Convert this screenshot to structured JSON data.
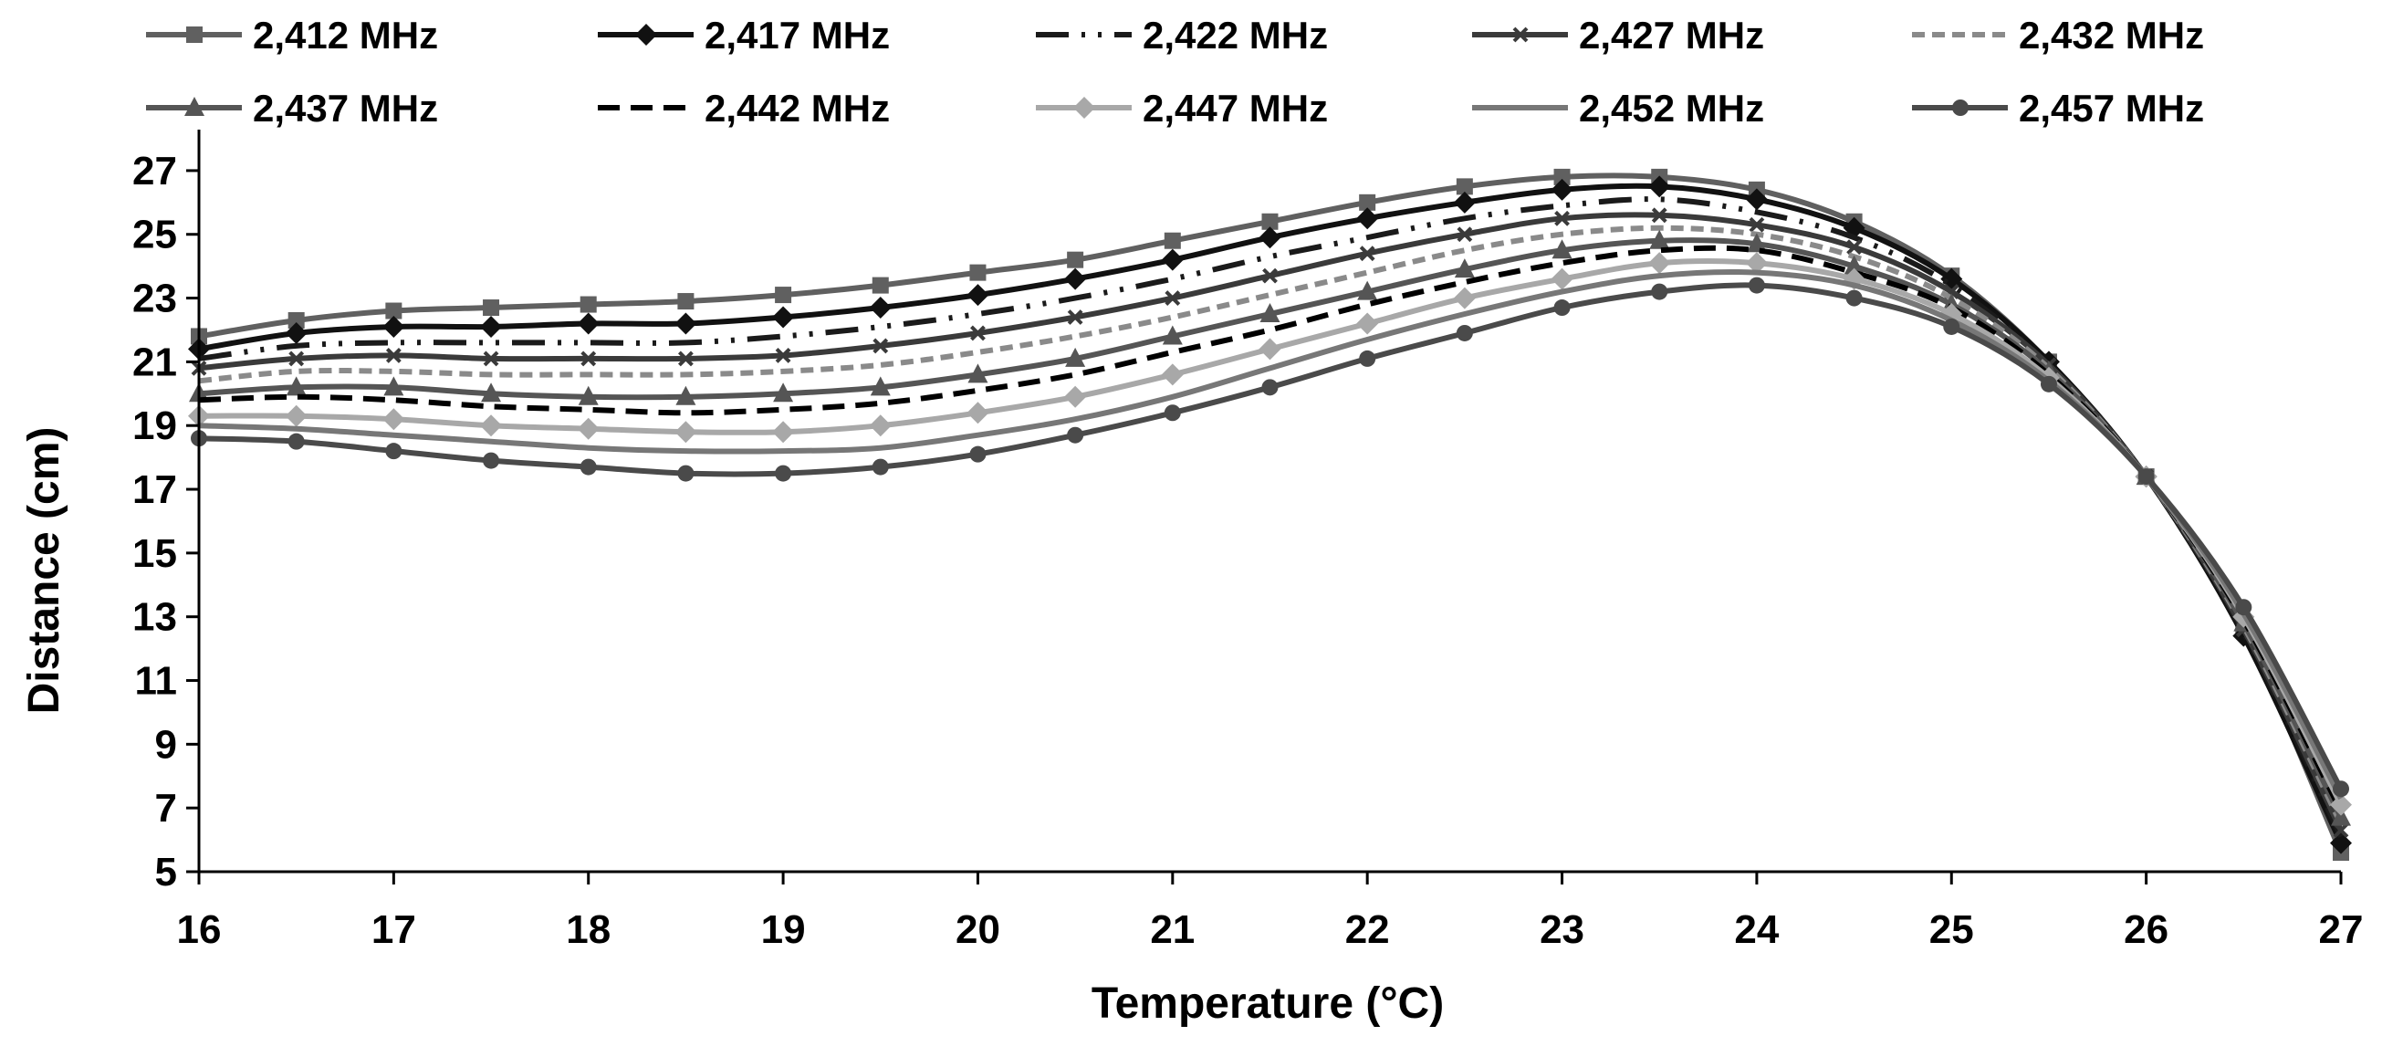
{
  "chart_data": {
    "type": "line",
    "title": "",
    "xlabel": "Temperature (°C)",
    "ylabel": "Distance (cm)",
    "xlim": [
      16,
      27
    ],
    "ylim": [
      5,
      28
    ],
    "xticks": [
      16,
      17,
      18,
      19,
      20,
      21,
      22,
      23,
      24,
      25,
      26,
      27
    ],
    "yticks": [
      5,
      7,
      9,
      11,
      13,
      15,
      17,
      19,
      21,
      23,
      25,
      27
    ],
    "grid": false,
    "legend_position": "top",
    "x": [
      16,
      16.5,
      17,
      17.5,
      18,
      18.5,
      19,
      19.5,
      20,
      20.5,
      21,
      21.5,
      22,
      22.5,
      23,
      23.5,
      24,
      24.5,
      25,
      25.5,
      26,
      26.5,
      27
    ],
    "series": [
      {
        "name": "2,412 MHz",
        "color": "#606060",
        "dash": "",
        "marker": "square",
        "values": [
          21.8,
          22.3,
          22.6,
          22.7,
          22.8,
          22.9,
          23.1,
          23.4,
          23.8,
          24.2,
          24.8,
          25.4,
          26.0,
          26.5,
          26.8,
          26.8,
          26.4,
          25.4,
          23.7,
          21.0,
          17.4,
          12.6,
          5.6
        ]
      },
      {
        "name": "2,417 MHz",
        "color": "#111111",
        "dash": "",
        "marker": "diamond",
        "values": [
          21.4,
          21.9,
          22.1,
          22.1,
          22.2,
          22.2,
          22.4,
          22.7,
          23.1,
          23.6,
          24.2,
          24.9,
          25.5,
          26.0,
          26.4,
          26.5,
          26.1,
          25.2,
          23.6,
          21.0,
          17.4,
          12.4,
          5.9
        ]
      },
      {
        "name": "2,422 MHz",
        "color": "#1a1a1a",
        "dash": "36,14,4,14,4,14",
        "marker": "",
        "values": [
          21.1,
          21.5,
          21.6,
          21.6,
          21.6,
          21.6,
          21.8,
          22.1,
          22.5,
          23.0,
          23.6,
          24.3,
          24.9,
          25.5,
          25.9,
          26.1,
          25.7,
          24.9,
          23.4,
          20.9,
          17.4,
          12.5,
          6.1
        ]
      },
      {
        "name": "2,427 MHz",
        "color": "#3a3a3a",
        "dash": "",
        "marker": "x",
        "values": [
          20.8,
          21.1,
          21.2,
          21.1,
          21.1,
          21.1,
          21.2,
          21.5,
          21.9,
          22.4,
          23.0,
          23.7,
          24.4,
          25.0,
          25.5,
          25.6,
          25.3,
          24.6,
          23.2,
          20.9,
          17.4,
          12.6,
          6.3
        ]
      },
      {
        "name": "2,432 MHz",
        "color": "#8a8a8a",
        "dash": "14,8",
        "marker": "",
        "values": [
          20.4,
          20.7,
          20.7,
          20.6,
          20.6,
          20.6,
          20.7,
          20.9,
          21.3,
          21.8,
          22.4,
          23.1,
          23.8,
          24.5,
          25.0,
          25.2,
          25.0,
          24.3,
          23.0,
          20.8,
          17.4,
          12.7,
          6.5
        ]
      },
      {
        "name": "2,437 MHz",
        "color": "#555555",
        "dash": "",
        "marker": "triangle",
        "values": [
          20.0,
          20.2,
          20.2,
          20.0,
          19.9,
          19.9,
          20.0,
          20.2,
          20.6,
          21.1,
          21.8,
          22.5,
          23.2,
          23.9,
          24.5,
          24.8,
          24.7,
          24.0,
          22.8,
          20.7,
          17.4,
          12.8,
          6.7
        ]
      },
      {
        "name": "2,442 MHz",
        "color": "#000000",
        "dash": "24,12",
        "marker": "",
        "values": [
          19.8,
          19.9,
          19.8,
          19.6,
          19.5,
          19.4,
          19.5,
          19.7,
          20.1,
          20.6,
          21.3,
          22.0,
          22.8,
          23.5,
          24.1,
          24.5,
          24.5,
          23.8,
          22.7,
          20.6,
          17.4,
          12.9,
          6.9
        ]
      },
      {
        "name": "2,447 MHz",
        "color": "#a8a8a8",
        "dash": "",
        "marker": "diamond-light",
        "values": [
          19.3,
          19.3,
          19.2,
          19.0,
          18.9,
          18.8,
          18.8,
          19.0,
          19.4,
          19.9,
          20.6,
          21.4,
          22.2,
          23.0,
          23.6,
          24.1,
          24.1,
          23.6,
          22.5,
          20.5,
          17.4,
          13.0,
          7.1
        ]
      },
      {
        "name": "2,452 MHz",
        "color": "#777777",
        "dash": "",
        "marker": "",
        "values": [
          19.0,
          18.9,
          18.7,
          18.5,
          18.3,
          18.2,
          18.2,
          18.3,
          18.7,
          19.2,
          19.9,
          20.8,
          21.7,
          22.5,
          23.2,
          23.7,
          23.8,
          23.4,
          22.3,
          20.4,
          17.4,
          13.1,
          7.3
        ]
      },
      {
        "name": "2,457 MHz",
        "color": "#4a4a4a",
        "dash": "",
        "marker": "circle",
        "values": [
          18.6,
          18.5,
          18.2,
          17.9,
          17.7,
          17.5,
          17.5,
          17.7,
          18.1,
          18.7,
          19.4,
          20.2,
          21.1,
          21.9,
          22.7,
          23.2,
          23.4,
          23.0,
          22.1,
          20.3,
          17.4,
          13.3,
          7.6
        ]
      }
    ]
  }
}
